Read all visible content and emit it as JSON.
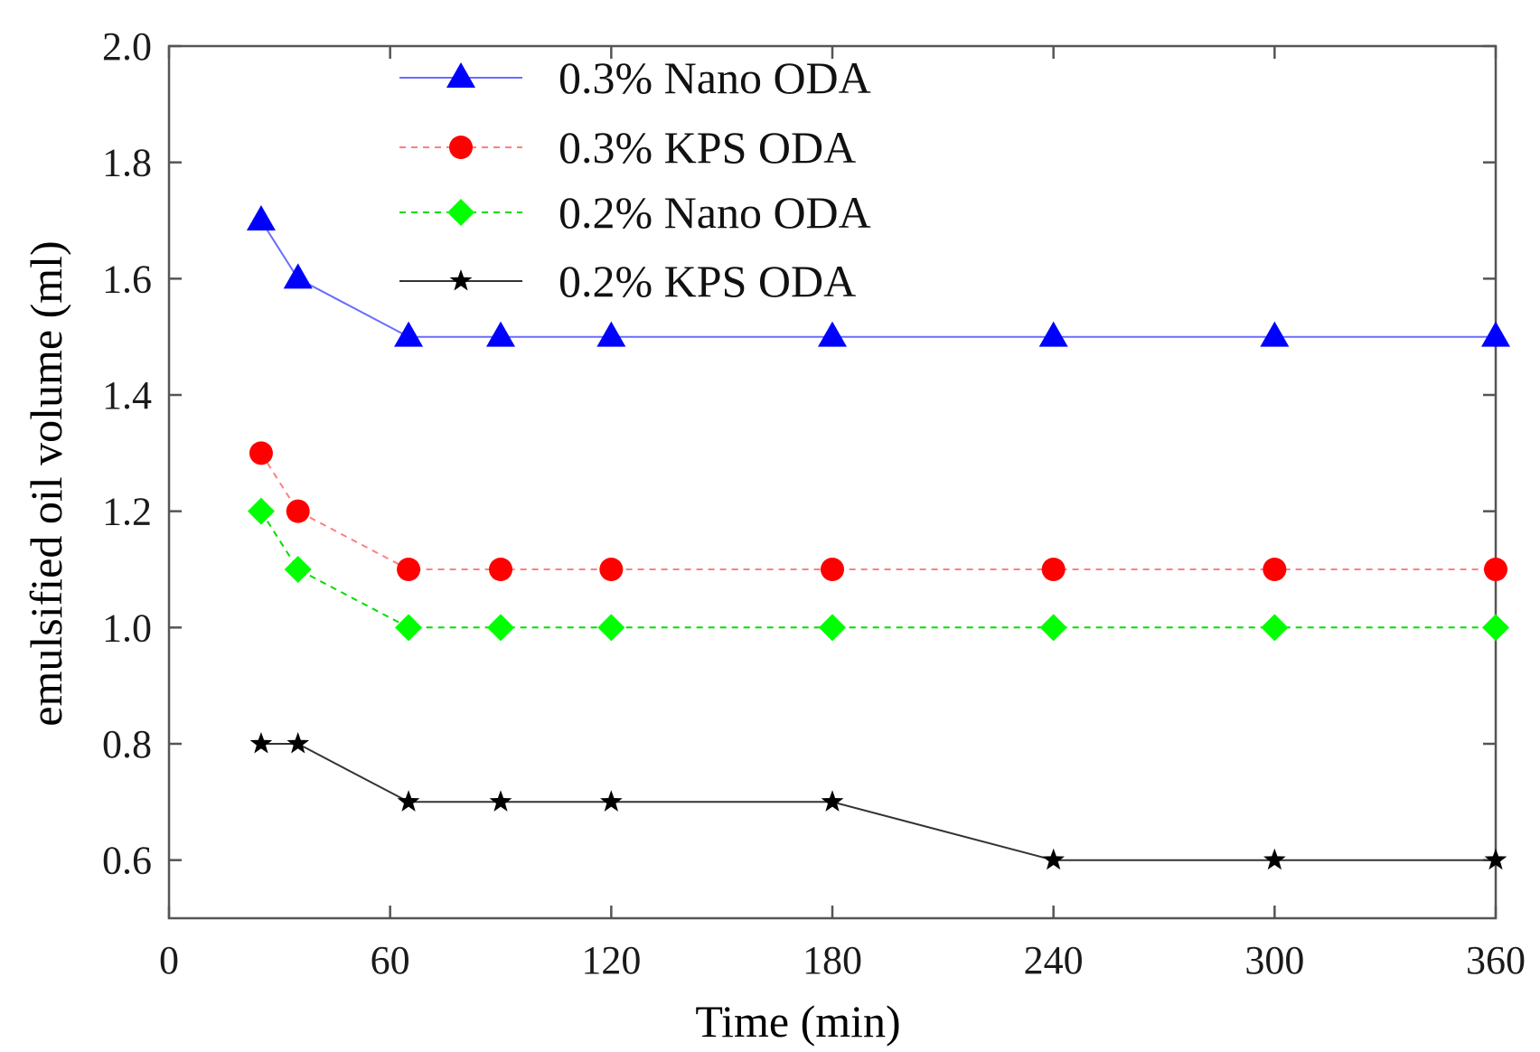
{
  "chart_data": {
    "type": "line",
    "title": "",
    "xlabel": "Time (min)",
    "ylabel": "emulsified oil volume (ml)",
    "xlim": [
      0,
      360
    ],
    "ylim": [
      0.5,
      2.0
    ],
    "xticks": [
      0,
      60,
      120,
      180,
      240,
      300,
      360
    ],
    "xtick_labels": [
      "0",
      "60",
      "120",
      "180",
      "240",
      "300",
      "360"
    ],
    "yticks": [
      0.6,
      0.8,
      1.0,
      1.2,
      1.4,
      1.6,
      1.8,
      2.0
    ],
    "ytick_labels": [
      "0.6",
      "0.8",
      "1.0",
      "1.2",
      "1.4",
      "1.6",
      "1.8",
      "2.0"
    ],
    "grid": false,
    "legend_position": "top-center",
    "x": [
      25,
      35,
      65,
      90,
      120,
      180,
      240,
      300,
      360
    ],
    "series": [
      {
        "name": "0.3% Nano ODA",
        "values": [
          1.7,
          1.6,
          1.5,
          1.5,
          1.5,
          1.5,
          1.5,
          1.5,
          1.5
        ],
        "color": "#0000ff",
        "line_color": "#6b6bff",
        "dash": "solid",
        "marker": "triangle"
      },
      {
        "name": "0.3% KPS ODA",
        "values": [
          1.3,
          1.2,
          1.1,
          1.1,
          1.1,
          1.1,
          1.1,
          1.1,
          1.1
        ],
        "color": "#ff0000",
        "line_color": "#ff7f7f",
        "dash": "dashed",
        "marker": "circle"
      },
      {
        "name": "0.2% Nano ODA",
        "values": [
          1.2,
          1.1,
          1.0,
          1.0,
          1.0,
          1.0,
          1.0,
          1.0,
          1.0
        ],
        "color": "#00ff00",
        "line_color": "#00dd00",
        "dash": "dashed",
        "marker": "diamond"
      },
      {
        "name": "0.2% KPS ODA",
        "values": [
          0.8,
          0.8,
          0.7,
          0.7,
          0.7,
          0.7,
          0.6,
          0.6,
          0.6
        ],
        "color": "#000000",
        "line_color": "#333333",
        "dash": "solid",
        "marker": "star"
      }
    ]
  }
}
